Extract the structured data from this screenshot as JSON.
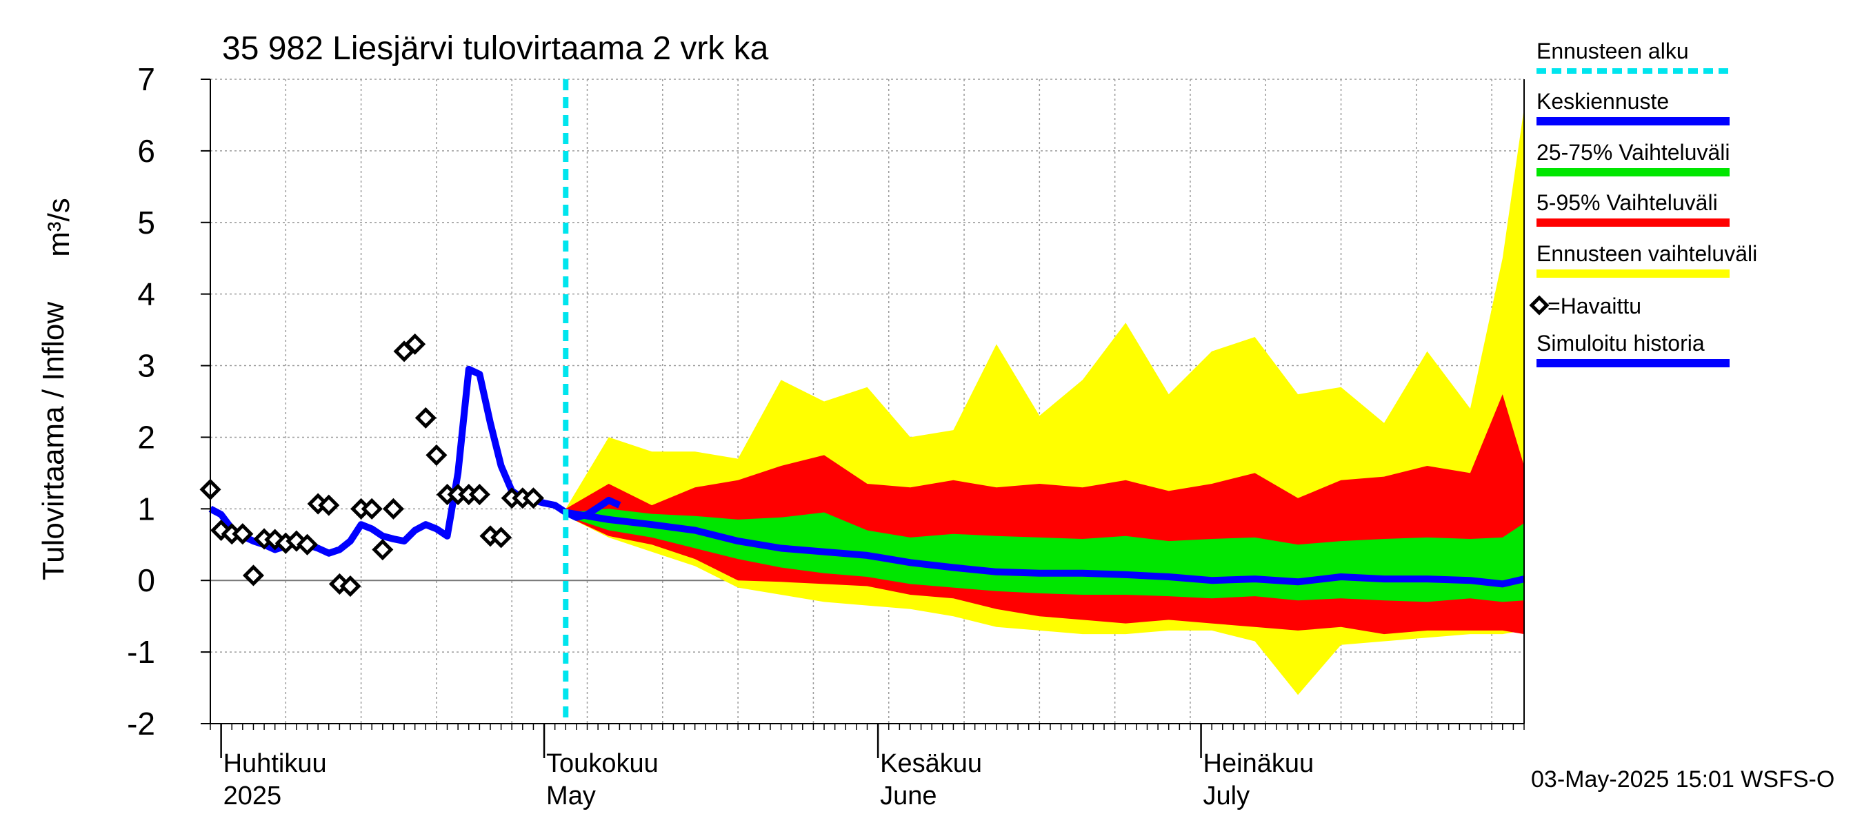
{
  "chart_data": {
    "type": "area",
    "title": "35 982 Liesjärvi tulovirtaama 2 vrk ka",
    "ylabel": "Tulovirtaama / Inflow",
    "yunit": "m³/s",
    "ylim": [
      -2,
      7
    ],
    "yticks": [
      "-2",
      "-1",
      "0",
      "1",
      "2",
      "3",
      "4",
      "5",
      "6",
      "7"
    ],
    "xlim": [
      "2025-03-31",
      "2025-07-31"
    ],
    "month_labels": [
      {
        "date": "2025-04-01",
        "line1": "Huhtikuu",
        "line2": "2025"
      },
      {
        "date": "2025-05-01",
        "line1": "Toukokuu",
        "line2": "May"
      },
      {
        "date": "2025-06-01",
        "line1": "Kesäkuu",
        "line2": "June"
      },
      {
        "date": "2025-07-01",
        "line1": "Heinäkuu",
        "line2": "July"
      }
    ],
    "forecast_start": "2025-05-03",
    "grid": true,
    "legend_position": "right",
    "legend": [
      {
        "label": "Ennusteen alku",
        "color": "#00e5ee",
        "style": "dashed"
      },
      {
        "label": "Keskiennuste",
        "color": "#0000ff",
        "style": "solid"
      },
      {
        "label": "25-75% Vaihteluväli",
        "color": "#00e600",
        "style": "solid"
      },
      {
        "label": "5-95% Vaihteluväli",
        "color": "#ff0000",
        "style": "solid"
      },
      {
        "label": "Ennusteen vaihteluväli",
        "color": "#ffff00",
        "style": "solid"
      },
      {
        "label": "=Havaittu",
        "color": "#000000",
        "style": "marker"
      },
      {
        "label": "Simuloitu historia",
        "color": "#0000ff",
        "style": "solid"
      }
    ],
    "footer": "03-May-2025 15:01 WSFS-O",
    "colors": {
      "yellow": "#ffff00",
      "red": "#ff0000",
      "green": "#00e600",
      "blue": "#0000ff",
      "forecast_line": "#00e5ee",
      "grid": "#9a9a9a"
    },
    "simulated_history": [
      [
        "2025-03-31",
        1.0
      ],
      [
        "2025-04-01",
        0.92
      ],
      [
        "2025-04-02",
        0.72
      ],
      [
        "2025-04-03",
        0.62
      ],
      [
        "2025-04-04",
        0.55
      ],
      [
        "2025-04-05",
        0.5
      ],
      [
        "2025-04-06",
        0.43
      ],
      [
        "2025-04-07",
        0.48
      ],
      [
        "2025-04-08",
        0.55
      ],
      [
        "2025-04-09",
        0.5
      ],
      [
        "2025-04-10",
        0.45
      ],
      [
        "2025-04-11",
        0.38
      ],
      [
        "2025-04-12",
        0.43
      ],
      [
        "2025-04-13",
        0.55
      ],
      [
        "2025-04-14",
        0.78
      ],
      [
        "2025-04-15",
        0.72
      ],
      [
        "2025-04-16",
        0.62
      ],
      [
        "2025-04-17",
        0.58
      ],
      [
        "2025-04-18",
        0.55
      ],
      [
        "2025-04-19",
        0.7
      ],
      [
        "2025-04-20",
        0.78
      ],
      [
        "2025-04-21",
        0.72
      ],
      [
        "2025-04-22",
        0.62
      ],
      [
        "2025-04-23",
        1.5
      ],
      [
        "2025-04-24",
        2.95
      ],
      [
        "2025-04-25",
        2.88
      ],
      [
        "2025-04-26",
        2.2
      ],
      [
        "2025-04-27",
        1.6
      ],
      [
        "2025-04-28",
        1.25
      ],
      [
        "2025-04-29",
        1.15
      ],
      [
        "2025-04-30",
        1.12
      ],
      [
        "2025-05-01",
        1.08
      ],
      [
        "2025-05-02",
        1.05
      ],
      [
        "2025-05-03",
        0.95
      ],
      [
        "2025-05-04",
        0.88
      ],
      [
        "2025-05-05",
        0.92
      ],
      [
        "2025-05-06",
        1.02
      ],
      [
        "2025-05-07",
        1.12
      ],
      [
        "2025-05-08",
        1.05
      ]
    ],
    "observed": [
      [
        "2025-03-31",
        1.27
      ],
      [
        "2025-04-01",
        0.7
      ],
      [
        "2025-04-02",
        0.65
      ],
      [
        "2025-04-03",
        0.65
      ],
      [
        "2025-04-04",
        0.07
      ],
      [
        "2025-04-05",
        0.58
      ],
      [
        "2025-04-06",
        0.57
      ],
      [
        "2025-04-07",
        0.52
      ],
      [
        "2025-04-08",
        0.55
      ],
      [
        "2025-04-09",
        0.5
      ],
      [
        "2025-04-10",
        1.07
      ],
      [
        "2025-04-11",
        1.05
      ],
      [
        "2025-04-12",
        -0.05
      ],
      [
        "2025-04-13",
        -0.08
      ],
      [
        "2025-04-14",
        1.0
      ],
      [
        "2025-04-15",
        1.0
      ],
      [
        "2025-04-16",
        0.43
      ],
      [
        "2025-04-17",
        1.0
      ],
      [
        "2025-04-18",
        3.2
      ],
      [
        "2025-04-19",
        3.3
      ],
      [
        "2025-04-20",
        2.27
      ],
      [
        "2025-04-21",
        1.75
      ],
      [
        "2025-04-22",
        1.2
      ],
      [
        "2025-04-23",
        1.2
      ],
      [
        "2025-04-24",
        1.2
      ],
      [
        "2025-04-25",
        1.2
      ],
      [
        "2025-04-26",
        0.62
      ],
      [
        "2025-04-27",
        0.6
      ],
      [
        "2025-04-28",
        1.15
      ],
      [
        "2025-04-29",
        1.15
      ],
      [
        "2025-04-30",
        1.15
      ]
    ],
    "forecast_bands": {
      "dates": [
        "2025-05-03",
        "2025-05-07",
        "2025-05-11",
        "2025-05-15",
        "2025-05-19",
        "2025-05-23",
        "2025-05-27",
        "2025-05-31",
        "2025-06-04",
        "2025-06-08",
        "2025-06-12",
        "2025-06-16",
        "2025-06-20",
        "2025-06-24",
        "2025-06-28",
        "2025-07-02",
        "2025-07-06",
        "2025-07-10",
        "2025-07-14",
        "2025-07-18",
        "2025-07-22",
        "2025-07-26",
        "2025-07-29",
        "2025-07-31"
      ],
      "max": [
        1.0,
        2.0,
        1.8,
        1.8,
        1.7,
        2.8,
        2.5,
        2.7,
        2.0,
        2.1,
        3.3,
        2.3,
        2.8,
        3.6,
        2.6,
        3.2,
        3.4,
        2.6,
        2.7,
        2.2,
        3.2,
        2.4,
        4.5,
        6.6
      ],
      "p95": [
        1.0,
        1.35,
        1.05,
        1.3,
        1.4,
        1.6,
        1.75,
        1.35,
        1.3,
        1.4,
        1.3,
        1.35,
        1.3,
        1.4,
        1.25,
        1.35,
        1.5,
        1.15,
        1.4,
        1.45,
        1.6,
        1.5,
        2.6,
        1.6
      ],
      "p75": [
        0.95,
        1.0,
        0.93,
        0.9,
        0.85,
        0.88,
        0.95,
        0.7,
        0.6,
        0.65,
        0.62,
        0.6,
        0.58,
        0.62,
        0.55,
        0.58,
        0.6,
        0.5,
        0.55,
        0.58,
        0.6,
        0.58,
        0.6,
        0.8
      ],
      "p50": [
        0.95,
        0.85,
        0.78,
        0.7,
        0.55,
        0.45,
        0.4,
        0.35,
        0.25,
        0.18,
        0.12,
        0.1,
        0.1,
        0.08,
        0.05,
        0.0,
        0.02,
        -0.02,
        0.05,
        0.02,
        0.02,
        0.0,
        -0.05,
        0.02
      ],
      "p25": [
        0.9,
        0.7,
        0.6,
        0.45,
        0.3,
        0.18,
        0.1,
        0.05,
        -0.05,
        -0.1,
        -0.15,
        -0.18,
        -0.2,
        -0.2,
        -0.22,
        -0.25,
        -0.22,
        -0.28,
        -0.25,
        -0.28,
        -0.3,
        -0.25,
        -0.3,
        -0.28
      ],
      "p5": [
        0.9,
        0.62,
        0.5,
        0.3,
        0.0,
        -0.02,
        -0.05,
        -0.08,
        -0.2,
        -0.25,
        -0.4,
        -0.5,
        -0.55,
        -0.6,
        -0.55,
        -0.6,
        -0.65,
        -0.7,
        -0.65,
        -0.75,
        -0.7,
        -0.7,
        -0.7,
        -0.75
      ],
      "min": [
        0.9,
        0.6,
        0.4,
        0.2,
        -0.1,
        -0.2,
        -0.3,
        -0.35,
        -0.4,
        -0.5,
        -0.65,
        -0.7,
        -0.75,
        -0.75,
        -0.7,
        -0.7,
        -0.85,
        -1.6,
        -0.9,
        -0.85,
        -0.8,
        -0.75,
        -0.75,
        -0.7
      ]
    }
  }
}
